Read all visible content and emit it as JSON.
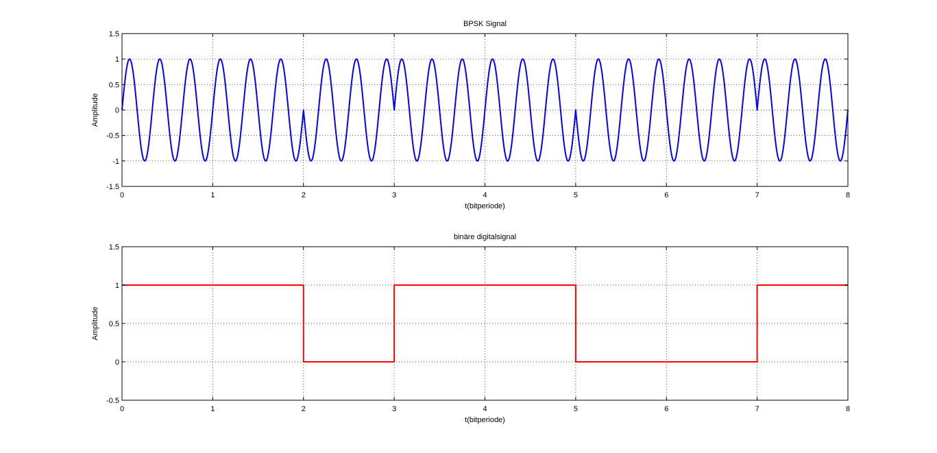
{
  "figure": {
    "background": "#ffffff"
  },
  "chart_data": [
    {
      "type": "line",
      "title": "BPSK Signal",
      "xlabel": "t(bitperiode)",
      "ylabel": "Amplitude",
      "xlim": [
        0,
        8
      ],
      "ylim": [
        -1.5,
        1.5
      ],
      "xticks": [
        "0",
        "1",
        "2",
        "3",
        "4",
        "5",
        "6",
        "7",
        "8"
      ],
      "yticks": [
        "-1.5",
        "-1",
        "-0.5",
        "0",
        "0.5",
        "1",
        "1.5"
      ],
      "grid": true,
      "series": [
        {
          "color": "#0000ff",
          "function": "sin(2*pi*3*t) for bit=1, -sin(2*pi*3*t) for bit=0",
          "carrier_cycles_per_bit": 3,
          "bits": [
            1,
            1,
            0,
            1,
            1,
            0,
            0,
            1
          ]
        }
      ]
    },
    {
      "type": "line",
      "title": "binäre digitalsignal",
      "xlabel": "t(bitperiode)",
      "ylabel": "Amplitude",
      "xlim": [
        0,
        8
      ],
      "ylim": [
        -0.5,
        1.5
      ],
      "xticks": [
        "0",
        "1",
        "2",
        "3",
        "4",
        "5",
        "6",
        "7",
        "8"
      ],
      "yticks": [
        "-0.5",
        "0",
        "0.5",
        "1",
        "1.5"
      ],
      "grid": true,
      "series": [
        {
          "color": "#ff0000",
          "step": true,
          "x": [
            0,
            2,
            2,
            3,
            3,
            5,
            5,
            7,
            7,
            8
          ],
          "y": [
            1,
            1,
            0,
            0,
            1,
            1,
            0,
            0,
            1,
            1
          ]
        }
      ]
    }
  ]
}
